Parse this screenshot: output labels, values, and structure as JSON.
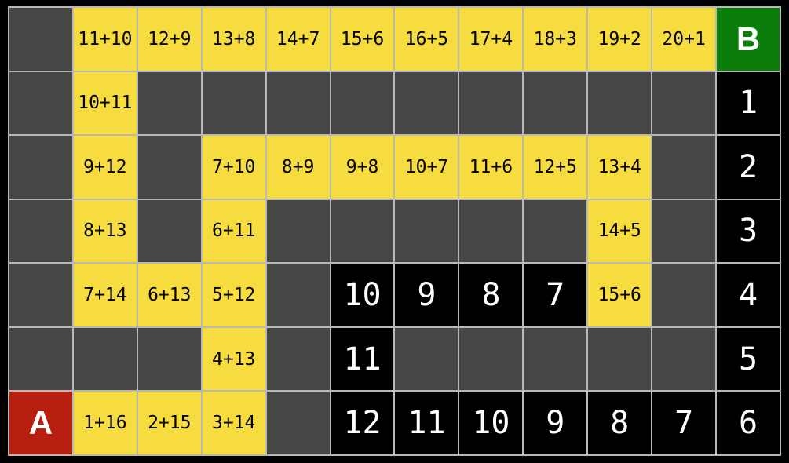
{
  "board": {
    "rows": 7,
    "cols": 12,
    "start_label": "A",
    "goal_label": "B",
    "cells": [
      [
        {
          "type": "empty"
        },
        {
          "type": "expr",
          "label": "11+10"
        },
        {
          "type": "expr",
          "label": "12+9"
        },
        {
          "type": "expr",
          "label": "13+8"
        },
        {
          "type": "expr",
          "label": "14+7"
        },
        {
          "type": "expr",
          "label": "15+6"
        },
        {
          "type": "expr",
          "label": "16+5"
        },
        {
          "type": "expr",
          "label": "17+4"
        },
        {
          "type": "expr",
          "label": "18+3"
        },
        {
          "type": "expr",
          "label": "19+2"
        },
        {
          "type": "expr",
          "label": "20+1"
        },
        {
          "type": "goal",
          "label": "B"
        }
      ],
      [
        {
          "type": "empty"
        },
        {
          "type": "expr",
          "label": "10+11"
        },
        {
          "type": "empty"
        },
        {
          "type": "empty"
        },
        {
          "type": "empty"
        },
        {
          "type": "empty"
        },
        {
          "type": "empty"
        },
        {
          "type": "empty"
        },
        {
          "type": "empty"
        },
        {
          "type": "empty"
        },
        {
          "type": "empty"
        },
        {
          "type": "count",
          "label": "1"
        }
      ],
      [
        {
          "type": "empty"
        },
        {
          "type": "expr",
          "label": "9+12"
        },
        {
          "type": "empty"
        },
        {
          "type": "expr",
          "label": "7+10"
        },
        {
          "type": "expr",
          "label": "8+9"
        },
        {
          "type": "expr",
          "label": "9+8"
        },
        {
          "type": "expr",
          "label": "10+7"
        },
        {
          "type": "expr",
          "label": "11+6"
        },
        {
          "type": "expr",
          "label": "12+5"
        },
        {
          "type": "expr",
          "label": "13+4"
        },
        {
          "type": "empty"
        },
        {
          "type": "count",
          "label": "2"
        }
      ],
      [
        {
          "type": "empty"
        },
        {
          "type": "expr",
          "label": "8+13"
        },
        {
          "type": "empty"
        },
        {
          "type": "expr",
          "label": "6+11"
        },
        {
          "type": "empty"
        },
        {
          "type": "empty"
        },
        {
          "type": "empty"
        },
        {
          "type": "empty"
        },
        {
          "type": "empty"
        },
        {
          "type": "expr",
          "label": "14+5"
        },
        {
          "type": "empty"
        },
        {
          "type": "count",
          "label": "3"
        }
      ],
      [
        {
          "type": "empty"
        },
        {
          "type": "expr",
          "label": "7+14"
        },
        {
          "type": "expr",
          "label": "6+13"
        },
        {
          "type": "expr",
          "label": "5+12"
        },
        {
          "type": "empty"
        },
        {
          "type": "count",
          "label": "10"
        },
        {
          "type": "count",
          "label": "9"
        },
        {
          "type": "count",
          "label": "8"
        },
        {
          "type": "count",
          "label": "7"
        },
        {
          "type": "expr",
          "label": "15+6"
        },
        {
          "type": "empty"
        },
        {
          "type": "count",
          "label": "4"
        }
      ],
      [
        {
          "type": "empty"
        },
        {
          "type": "empty"
        },
        {
          "type": "empty"
        },
        {
          "type": "expr",
          "label": "4+13"
        },
        {
          "type": "empty"
        },
        {
          "type": "count",
          "label": "11"
        },
        {
          "type": "empty"
        },
        {
          "type": "empty"
        },
        {
          "type": "empty"
        },
        {
          "type": "empty"
        },
        {
          "type": "empty"
        },
        {
          "type": "count",
          "label": "5"
        }
      ],
      [
        {
          "type": "start",
          "label": "A"
        },
        {
          "type": "expr",
          "label": "1+16"
        },
        {
          "type": "expr",
          "label": "2+15"
        },
        {
          "type": "expr",
          "label": "3+14"
        },
        {
          "type": "empty"
        },
        {
          "type": "count",
          "label": "12"
        },
        {
          "type": "count",
          "label": "11"
        },
        {
          "type": "count",
          "label": "10"
        },
        {
          "type": "count",
          "label": "9"
        },
        {
          "type": "count",
          "label": "8"
        },
        {
          "type": "count",
          "label": "7"
        },
        {
          "type": "count",
          "label": "6"
        }
      ]
    ]
  },
  "colors": {
    "frame": "#000000",
    "gridline": "#b8b8b8",
    "empty": "#464646",
    "path": "#f7dc3f",
    "solution": "#000000",
    "start": "#b71f10",
    "goal": "#0a7d0a",
    "text_dark": "#000000",
    "text_light": "#ffffff"
  }
}
